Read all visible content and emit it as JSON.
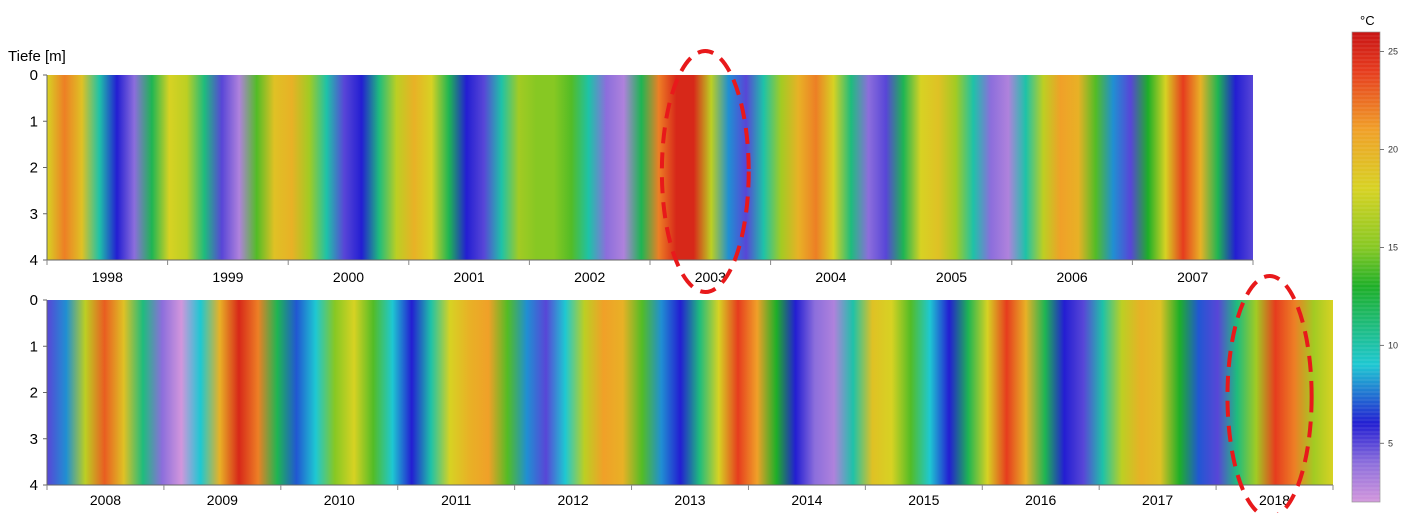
{
  "chart_data": {
    "type": "heatmap",
    "ylabel": "Tiefe [m]",
    "yticks": [
      "0",
      "1",
      "2",
      "3",
      "4"
    ],
    "ylim": [
      0,
      4
    ],
    "colorbar": {
      "unit": "°C",
      "range": [
        2,
        26
      ],
      "ticks": [
        "25",
        "20",
        "15",
        "10",
        "5"
      ],
      "tick_values": [
        25,
        20,
        15,
        10,
        5
      ]
    },
    "panels": [
      {
        "years": [
          "1998",
          "1999",
          "2000",
          "2001",
          "2002",
          "2003",
          "2004",
          "2005",
          "2006",
          "2007"
        ],
        "highlight": "2003",
        "surface_temperature_c": [
          18,
          22,
          19,
          10,
          6,
          4,
          12,
          18,
          17,
          11,
          5,
          3,
          14,
          19,
          20,
          16,
          10,
          5,
          6,
          11,
          17,
          20,
          18,
          12,
          6,
          5,
          10,
          16,
          15,
          15,
          14,
          10,
          4,
          3,
          12,
          22,
          25,
          25,
          17,
          8,
          5,
          10,
          16,
          20,
          22,
          18,
          11,
          4,
          5,
          12,
          18,
          19,
          16,
          10,
          4,
          3,
          10,
          17,
          21,
          20,
          14,
          8,
          5,
          13,
          18,
          24,
          20,
          12,
          6,
          5
        ]
      },
      {
        "years": [
          "2008",
          "2009",
          "2010",
          "2011",
          "2012",
          "2013",
          "2014",
          "2015",
          "2016",
          "2017",
          "2018"
        ],
        "highlight": "2018",
        "surface_temperature_c": [
          5,
          8,
          17,
          23,
          19,
          11,
          4,
          2,
          9,
          20,
          25,
          22,
          12,
          7,
          9,
          15,
          18,
          14,
          9,
          6,
          10,
          18,
          20,
          21,
          14,
          8,
          5,
          9,
          17,
          21,
          20,
          14,
          8,
          6,
          11,
          18,
          24,
          21,
          13,
          6,
          4,
          3,
          10,
          19,
          18,
          14,
          9,
          6,
          12,
          18,
          24,
          20,
          12,
          6,
          5,
          10,
          17,
          20,
          19,
          13,
          7,
          5,
          11,
          16,
          24,
          22,
          16,
          18
        ]
      }
    ]
  }
}
